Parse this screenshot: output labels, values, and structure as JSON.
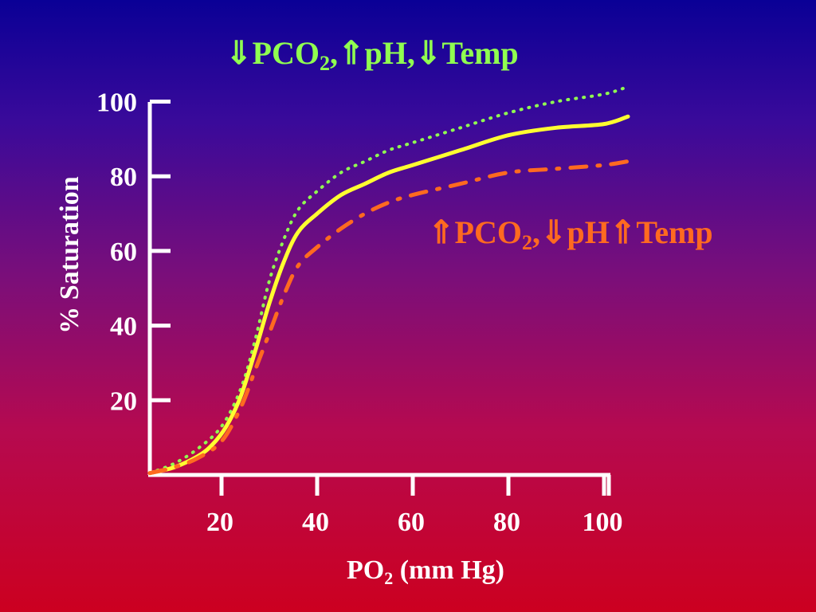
{
  "chart_data": {
    "type": "line",
    "title": "",
    "xlabel": "PO₂ (mm Hg)",
    "ylabel": "% Saturation",
    "x_ticks": [
      20,
      40,
      60,
      80,
      100
    ],
    "y_ticks": [
      20,
      40,
      60,
      80,
      100
    ],
    "xlim": [
      5,
      105
    ],
    "ylim": [
      0,
      100
    ],
    "grid": false,
    "series": [
      {
        "name": "⇓ PCO₂, ⇑ pH, ⇓ Temp",
        "color": "#90ff50",
        "style": "dotted",
        "x": [
          5,
          10,
          15,
          20,
          24,
          27,
          30,
          33,
          36,
          40,
          45,
          50,
          55,
          60,
          70,
          80,
          90,
          100,
          105
        ],
        "y": [
          0.5,
          3,
          7,
          13,
          23,
          36,
          52,
          63,
          71,
          76,
          81,
          84,
          87,
          89,
          93,
          97,
          100,
          102,
          104
        ]
      },
      {
        "name": "",
        "color": "#ffff30",
        "style": "solid",
        "x": [
          5,
          10,
          15,
          18,
          21,
          24,
          27,
          30,
          33,
          36,
          40,
          45,
          50,
          55,
          60,
          70,
          80,
          90,
          100,
          105
        ],
        "y": [
          0.5,
          2,
          5,
          8,
          13,
          21,
          33,
          46,
          57,
          65,
          70,
          75,
          78,
          81,
          83,
          87,
          91,
          93,
          94,
          96
        ]
      },
      {
        "name": "⇑ PCO₂, ⇓ pH ⇑ Temp",
        "color": "#ff6a20",
        "style": "dashdot",
        "x": [
          5,
          10,
          15,
          20,
          24,
          27,
          30,
          33,
          36,
          40,
          45,
          50,
          55,
          60,
          70,
          80,
          90,
          100,
          105
        ],
        "y": [
          0.5,
          2,
          4.5,
          9,
          18,
          28,
          38,
          48,
          56,
          61,
          66,
          70,
          73,
          75,
          78,
          81,
          82,
          83,
          84
        ]
      }
    ],
    "annotations": {
      "upper_label": {
        "arrow1": "⇓",
        "text1": "PCO",
        "sub1": "2",
        "text2": ",",
        "arrow2": "⇑",
        "text3": "pH,",
        "arrow3": "⇓",
        "text4": "Temp",
        "color": "#90ff50"
      },
      "lower_label": {
        "arrow1": "⇑",
        "text1": "PCO",
        "sub1": "2",
        "text2": ",",
        "arrow2": "⇓",
        "text3": "pH",
        "arrow3": "⇑",
        "text4": "Temp",
        "color": "#ff6a20"
      },
      "xlabel_parts": {
        "pre": "PO",
        "sub": "2",
        "post": " (mm Hg)"
      }
    },
    "axis_color": "#ffffff"
  }
}
